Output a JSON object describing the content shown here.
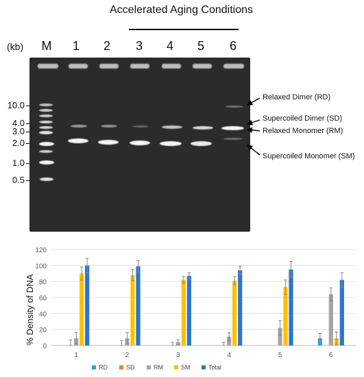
{
  "header": {
    "title": "Accelerated Aging Conditions",
    "kb_label": "(kb)"
  },
  "lanes": [
    "M",
    "1",
    "2",
    "3",
    "4",
    "5",
    "6"
  ],
  "ladder_sizes": [
    "10.0",
    "4.0",
    "3.0",
    "2.0",
    "1.0",
    "0.5"
  ],
  "band_annotations": {
    "rd": "Relaxed Dimer (RD)",
    "sd": "Supercoiled Dimer (SD)",
    "rm": "Relaxed Monomer (RM)",
    "sm": "Supercoiled Monomer (SM)"
  },
  "chart_data": {
    "type": "bar",
    "categories": [
      "1",
      "2",
      "3",
      "4",
      "5",
      "6"
    ],
    "ylabel": "% Density of DNA",
    "ylim": [
      0,
      120
    ],
    "yticks": [
      0,
      20,
      40,
      60,
      80,
      100,
      120
    ],
    "grid": true,
    "legend_position": "bottom",
    "series": [
      {
        "name": "RD",
        "color": "#2aa3dd",
        "values": [
          0,
          0,
          0,
          0,
          0,
          9
        ],
        "errors": [
          0,
          0,
          0,
          0,
          0,
          6
        ]
      },
      {
        "name": "SD",
        "color": "#ed7d31",
        "values": [
          0,
          0,
          0,
          0,
          0,
          0
        ],
        "errors": [
          7,
          6,
          4,
          4,
          0,
          0
        ]
      },
      {
        "name": "RM",
        "color": "#a5a5a5",
        "values": [
          9,
          9,
          4,
          11,
          22,
          64
        ],
        "errors": [
          7,
          7,
          3,
          5,
          9,
          8
        ]
      },
      {
        "name": "SM",
        "color": "#ffc000",
        "values": [
          90,
          88,
          82,
          81,
          73,
          9
        ],
        "errors": [
          8,
          7,
          4,
          5,
          9,
          8
        ]
      },
      {
        "name": "Total",
        "color": "#2e75cb",
        "values": [
          100,
          99,
          87,
          94,
          95,
          82
        ],
        "errors": [
          9,
          7,
          4,
          5,
          10,
          9
        ]
      }
    ]
  }
}
